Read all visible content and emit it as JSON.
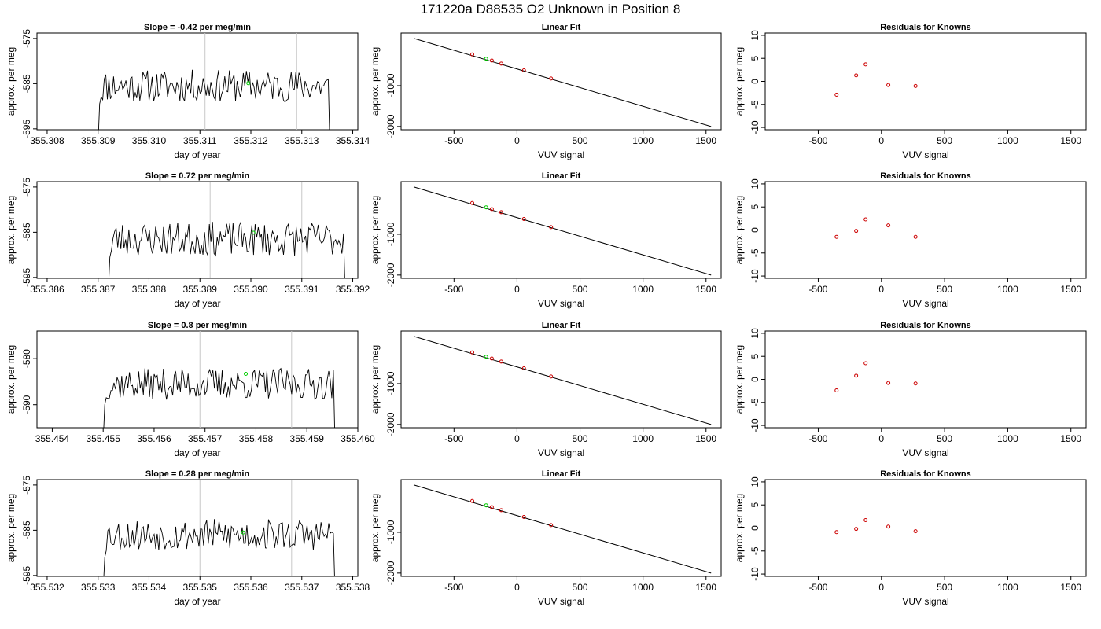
{
  "page_title": "171220a     D88535   O2 Unknown in Position  8",
  "colors": {
    "trace": "#000000",
    "fit_line": "#000000",
    "knowns": "#cc0000",
    "unknown": "#00cc00",
    "marker_lines": "#c8c8c8"
  },
  "chart_data": [
    {
      "type": "line",
      "row": 0,
      "title": "Slope =  -0.42  per meg/min",
      "xlabel": "day of year",
      "ylabel": "approx. per meg",
      "xlim": [
        355.3078,
        355.3141
      ],
      "ylim": [
        -595.2,
        -573.8
      ],
      "xticks": [
        "355.308",
        "355.309",
        "355.310",
        "355.311",
        "355.312",
        "355.313",
        "355.314"
      ],
      "yticks": [
        -575,
        -585,
        -595
      ],
      "vlines": [
        355.3111,
        355.3129
      ],
      "unknown_point": {
        "x": 355.31195,
        "y": -584.9
      },
      "series": [
        {
          "start": 355.309,
          "end": 355.31355,
          "seed": 11,
          "level": -585.5,
          "amp": 3.6,
          "rise": -589.5
        }
      ]
    },
    {
      "type": "scatter",
      "row": 0,
      "title": "Linear Fit",
      "xlabel": "VUV signal",
      "ylabel": "approx. per meg",
      "xlim": [
        -920,
        1620
      ],
      "ylim": [
        -2080,
        290
      ],
      "xticks": [
        -500,
        0,
        500,
        1000,
        1500
      ],
      "yticks": [
        -1000,
        -2000
      ],
      "fit_line": {
        "x": [
          -820,
          1540
        ],
        "y": [
          160,
          -2000
        ]
      },
      "knowns": [
        {
          "x": -355,
          "y": -235
        },
        {
          "x": -200,
          "y": -385
        },
        {
          "x": -125,
          "y": -460
        },
        {
          "x": 55,
          "y": -625
        },
        {
          "x": 270,
          "y": -825
        }
      ],
      "unknown": {
        "x": -245,
        "y": -340
      }
    },
    {
      "type": "scatter",
      "row": 0,
      "title": "Residuals for Knowns",
      "xlabel": "VUV signal",
      "ylabel": "approx. per meg",
      "xlim": [
        -920,
        1620
      ],
      "ylim": [
        -10.5,
        10.5
      ],
      "xticks": [
        -500,
        0,
        500,
        1000,
        1500
      ],
      "yticks": [
        10,
        5,
        0,
        -5,
        -10
      ],
      "points": [
        {
          "x": -355,
          "y": -2.9
        },
        {
          "x": -200,
          "y": 1.3
        },
        {
          "x": -125,
          "y": 3.7
        },
        {
          "x": 55,
          "y": -0.8
        },
        {
          "x": 270,
          "y": -1.0
        }
      ]
    },
    {
      "type": "line",
      "row": 1,
      "title": "Slope =  0.72  per meg/min",
      "xlabel": "day of year",
      "ylabel": "approx. per meg",
      "xlim": [
        355.3858,
        355.3921
      ],
      "ylim": [
        -595.2,
        -573.8
      ],
      "xticks": [
        "355.386",
        "355.387",
        "355.388",
        "355.389",
        "355.390",
        "355.391",
        "355.392"
      ],
      "yticks": [
        -575,
        -585,
        -595
      ],
      "vlines": [
        355.3892,
        355.391
      ],
      "unknown_point": {
        "x": 355.39005,
        "y": -585.1
      },
      "series": [
        {
          "start": 355.3872,
          "end": 355.39185,
          "seed": 23,
          "level": -586.5,
          "amp": 3.8,
          "rise": -590.5
        }
      ]
    },
    {
      "type": "scatter",
      "row": 1,
      "title": "Linear Fit",
      "xlabel": "VUV signal",
      "ylabel": "approx. per meg",
      "xlim": [
        -920,
        1620
      ],
      "ylim": [
        -2080,
        290
      ],
      "xticks": [
        -500,
        0,
        500,
        1000,
        1500
      ],
      "yticks": [
        -1000,
        -2000
      ],
      "fit_line": {
        "x": [
          -820,
          1540
        ],
        "y": [
          160,
          -2000
        ]
      },
      "knowns": [
        {
          "x": -355,
          "y": -235
        },
        {
          "x": -200,
          "y": -385
        },
        {
          "x": -125,
          "y": -460
        },
        {
          "x": 55,
          "y": -625
        },
        {
          "x": 270,
          "y": -825
        }
      ],
      "unknown": {
        "x": -245,
        "y": -340
      }
    },
    {
      "type": "scatter",
      "row": 1,
      "title": "Residuals for Knowns",
      "xlabel": "VUV signal",
      "ylabel": "approx. per meg",
      "xlim": [
        -920,
        1620
      ],
      "ylim": [
        -10.5,
        10.5
      ],
      "xticks": [
        -500,
        0,
        500,
        1000,
        1500
      ],
      "yticks": [
        10,
        5,
        0,
        -5,
        -10
      ],
      "points": [
        {
          "x": -355,
          "y": -1.5
        },
        {
          "x": -200,
          "y": -0.2
        },
        {
          "x": -125,
          "y": 2.3
        },
        {
          "x": 55,
          "y": 1.0
        },
        {
          "x": 270,
          "y": -1.5
        }
      ]
    },
    {
      "type": "line",
      "row": 2,
      "title": "Slope =  0.8  per meg/min",
      "xlabel": "day of year",
      "ylabel": "approx. per meg",
      "xlim": [
        355.4537,
        355.46
      ],
      "ylim": [
        -595.0,
        -574.0
      ],
      "xticks": [
        "355.454",
        "355.455",
        "355.456",
        "355.457",
        "355.458",
        "355.459",
        "355.460"
      ],
      "yticks": [
        -580,
        -590
      ],
      "vlines": [
        355.4569,
        355.4587
      ],
      "unknown_point": {
        "x": 355.4578,
        "y": -583.3
      },
      "series": [
        {
          "start": 355.455,
          "end": 355.45955,
          "seed": 37,
          "level": -585.5,
          "amp": 3.4,
          "rise": -590.0
        }
      ]
    },
    {
      "type": "scatter",
      "row": 2,
      "title": "Linear Fit",
      "xlabel": "VUV signal",
      "ylabel": "approx. per meg",
      "xlim": [
        -920,
        1620
      ],
      "ylim": [
        -2080,
        290
      ],
      "xticks": [
        -500,
        0,
        500,
        1000,
        1500
      ],
      "yticks": [
        -1000,
        -2000
      ],
      "fit_line": {
        "x": [
          -820,
          1540
        ],
        "y": [
          160,
          -2000
        ]
      },
      "knowns": [
        {
          "x": -355,
          "y": -235
        },
        {
          "x": -200,
          "y": -385
        },
        {
          "x": -125,
          "y": -460
        },
        {
          "x": 55,
          "y": -625
        },
        {
          "x": 270,
          "y": -825
        }
      ],
      "unknown": {
        "x": -245,
        "y": -340
      }
    },
    {
      "type": "scatter",
      "row": 2,
      "title": "Residuals for Knowns",
      "xlabel": "VUV signal",
      "ylabel": "approx. per meg",
      "xlim": [
        -920,
        1620
      ],
      "ylim": [
        -10.5,
        10.5
      ],
      "xticks": [
        -500,
        0,
        500,
        1000,
        1500
      ],
      "yticks": [
        10,
        5,
        0,
        -5,
        -10
      ],
      "points": [
        {
          "x": -355,
          "y": -2.4
        },
        {
          "x": -200,
          "y": 0.8
        },
        {
          "x": -125,
          "y": 3.5
        },
        {
          "x": 55,
          "y": -0.8
        },
        {
          "x": 270,
          "y": -0.9
        }
      ]
    },
    {
      "type": "line",
      "row": 3,
      "title": "Slope =  0.28  per meg/min",
      "xlabel": "day of year",
      "ylabel": "approx. per meg",
      "xlim": [
        355.5318,
        355.5381
      ],
      "ylim": [
        -595.2,
        -573.8
      ],
      "xticks": [
        "355.532",
        "355.533",
        "355.534",
        "355.535",
        "355.536",
        "355.537",
        "355.538"
      ],
      "yticks": [
        -575,
        -585,
        -595
      ],
      "vlines": [
        355.535,
        355.5368
      ],
      "unknown_point": {
        "x": 355.53585,
        "y": -585.5
      },
      "series": [
        {
          "start": 355.5331,
          "end": 355.53765,
          "seed": 53,
          "level": -586.0,
          "amp": 3.5,
          "rise": -591.0
        }
      ]
    },
    {
      "type": "scatter",
      "row": 3,
      "title": "Linear Fit",
      "xlabel": "VUV signal",
      "ylabel": "approx. per meg",
      "xlim": [
        -920,
        1620
      ],
      "ylim": [
        -2080,
        290
      ],
      "xticks": [
        -500,
        0,
        500,
        1000,
        1500
      ],
      "yticks": [
        -1000,
        -2000
      ],
      "fit_line": {
        "x": [
          -820,
          1540
        ],
        "y": [
          160,
          -2000
        ]
      },
      "knowns": [
        {
          "x": -355,
          "y": -235
        },
        {
          "x": -200,
          "y": -385
        },
        {
          "x": -125,
          "y": -460
        },
        {
          "x": 55,
          "y": -625
        },
        {
          "x": 270,
          "y": -825
        }
      ],
      "unknown": {
        "x": -245,
        "y": -340
      }
    },
    {
      "type": "scatter",
      "row": 3,
      "title": "Residuals for Knowns",
      "xlabel": "VUV signal",
      "ylabel": "approx. per meg",
      "xlim": [
        -920,
        1620
      ],
      "ylim": [
        -10.5,
        10.5
      ],
      "xticks": [
        -500,
        0,
        500,
        1000,
        1500
      ],
      "yticks": [
        10,
        5,
        0,
        -5,
        -10
      ],
      "points": [
        {
          "x": -355,
          "y": -0.9
        },
        {
          "x": -200,
          "y": -0.2
        },
        {
          "x": -125,
          "y": 1.7
        },
        {
          "x": 55,
          "y": 0.3
        },
        {
          "x": 270,
          "y": -0.7
        }
      ]
    }
  ]
}
